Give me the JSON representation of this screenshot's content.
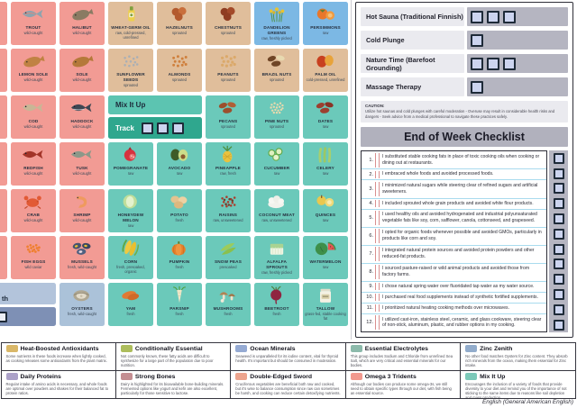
{
  "colors": {
    "omega3": "#F29B94",
    "cond": "#E0BE9B",
    "heat": "#7CB8E4",
    "mix": "#6BC9BA",
    "zinc": "#ABC2D9",
    "mix_panel_title_bg": "#5CC4B1",
    "mix_panel_track_bg": "#2FA78E",
    "zinc_panel_title_bg": "#B3C4DB",
    "zinc_panel_track_bg": "#7E90B5",
    "checkbox_fill": "#CCD4EF"
  },
  "food_grid": {
    "mix_panel": {
      "title": "Mix It Up",
      "track_label": "Track",
      "checkbox_count": 3
    },
    "zinc_panel": {
      "visible_title": "th",
      "checkbox_count": 1
    },
    "cells": [
      {
        "row": 1,
        "col": 1,
        "name": "TROUT",
        "sub": "wild-caught",
        "cat": "omega3",
        "icon": "trout-fish-icon"
      },
      {
        "row": 1,
        "col": 2,
        "name": "HALIBUT",
        "sub": "wild-caught",
        "cat": "omega3",
        "icon": "halibut-fish-icon"
      },
      {
        "row": 1,
        "col": 3,
        "name": "WHEAT-GERM OIL",
        "sub": "raw, cold-pressed, unrefined",
        "cat": "cond",
        "icon": "oil-bottle-icon"
      },
      {
        "row": 1,
        "col": 4,
        "name": "HAZELNUTS",
        "sub": "sprouted",
        "cat": "cond",
        "icon": "hazelnuts-icon"
      },
      {
        "row": 1,
        "col": 5,
        "name": "CHESTNUTS",
        "sub": "sprouted",
        "cat": "cond",
        "icon": "chestnuts-icon"
      },
      {
        "row": 1,
        "col": 6,
        "name": "DANDELION GREENS",
        "sub": "raw, freshly picked",
        "cat": "heat",
        "icon": "dandelion-greens-icon"
      },
      {
        "row": 1,
        "col": 7,
        "name": "PERSIMMONS",
        "sub": "raw",
        "cat": "heat",
        "icon": "persimmons-icon"
      },
      {
        "row": 2,
        "col": 1,
        "name": "LEMON SOLE",
        "sub": "wild-caught",
        "cat": "omega3",
        "icon": "lemon-sole-fish-icon"
      },
      {
        "row": 2,
        "col": 2,
        "name": "SOLE",
        "sub": "wild-caught",
        "cat": "omega3",
        "icon": "sole-fish-icon"
      },
      {
        "row": 2,
        "col": 3,
        "name": "SUNFLOWER SEEDS",
        "sub": "sprouted",
        "cat": "cond",
        "icon": "sunflower-seeds-icon"
      },
      {
        "row": 2,
        "col": 4,
        "name": "ALMONDS",
        "sub": "sprouted",
        "cat": "cond",
        "icon": "almonds-icon"
      },
      {
        "row": 2,
        "col": 5,
        "name": "PEANUTS",
        "sub": "sprouted",
        "cat": "cond",
        "icon": "peanuts-icon"
      },
      {
        "row": 2,
        "col": 6,
        "name": "BRAZIL NUTS",
        "sub": "sprouted",
        "cat": "cond",
        "icon": "brazil-nuts-icon"
      },
      {
        "row": 2,
        "col": 7,
        "name": "PALM OIL",
        "sub": "cold-pressed, unrefined",
        "cat": "cond",
        "icon": "palm-oil-icon"
      },
      {
        "row": 3,
        "col": 1,
        "name": "COD",
        "sub": "wild-caught",
        "cat": "omega3",
        "icon": "cod-fish-icon"
      },
      {
        "row": 3,
        "col": 2,
        "name": "HADDOCK",
        "sub": "wild-caught",
        "cat": "omega3",
        "icon": "haddock-fish-icon"
      },
      {
        "row": 3,
        "col": 5,
        "name": "PECANS",
        "sub": "sprouted",
        "cat": "mix",
        "icon": "pecans-icon"
      },
      {
        "row": 3,
        "col": 6,
        "name": "PINE NUTS",
        "sub": "sprouted",
        "cat": "mix",
        "icon": "pine-nuts-icon"
      },
      {
        "row": 3,
        "col": 7,
        "name": "DATES",
        "sub": "raw",
        "cat": "mix",
        "icon": "dates-icon"
      },
      {
        "row": 4,
        "col": 1,
        "name": "REDFISH",
        "sub": "wild-caught",
        "cat": "omega3",
        "icon": "redfish-icon"
      },
      {
        "row": 4,
        "col": 2,
        "name": "TUSK",
        "sub": "wild-caught",
        "cat": "omega3",
        "icon": "tusk-fish-icon"
      },
      {
        "row": 4,
        "col": 3,
        "name": "POMEGRANATE",
        "sub": "raw",
        "cat": "mix",
        "icon": "pomegranate-icon"
      },
      {
        "row": 4,
        "col": 4,
        "name": "AVOCADO",
        "sub": "raw",
        "cat": "mix",
        "icon": "avocado-icon"
      },
      {
        "row": 4,
        "col": 5,
        "name": "PINEAPPLE",
        "sub": "raw, fresh",
        "cat": "mix",
        "icon": "pineapple-icon"
      },
      {
        "row": 4,
        "col": 6,
        "name": "CUCUMBER",
        "sub": "raw",
        "cat": "mix",
        "icon": "cucumber-icon"
      },
      {
        "row": 4,
        "col": 7,
        "name": "CELERY",
        "sub": "raw",
        "cat": "mix",
        "icon": "celery-icon"
      },
      {
        "row": 5,
        "col": 1,
        "name": "CRAB",
        "sub": "wild-caught",
        "cat": "omega3",
        "icon": "crab-icon"
      },
      {
        "row": 5,
        "col": 2,
        "name": "SHRIMP",
        "sub": "wild-caught",
        "cat": "omega3",
        "icon": "shrimp-icon"
      },
      {
        "row": 5,
        "col": 3,
        "name": "HONEYDEW MELON",
        "sub": "raw",
        "cat": "mix",
        "icon": "honeydew-melon-icon"
      },
      {
        "row": 5,
        "col": 4,
        "name": "POTATO",
        "sub": "fresh",
        "cat": "mix",
        "icon": "potato-icon"
      },
      {
        "row": 5,
        "col": 5,
        "name": "RAISINS",
        "sub": "raw, unsweetened",
        "cat": "mix",
        "icon": "raisins-icon"
      },
      {
        "row": 5,
        "col": 6,
        "name": "COCONUT MEAT",
        "sub": "raw, unsweetened",
        "cat": "mix",
        "icon": "coconut-meat-icon"
      },
      {
        "row": 5,
        "col": 7,
        "name": "QUINCES",
        "sub": "raw",
        "cat": "mix",
        "icon": "quinces-icon"
      },
      {
        "row": 6,
        "col": 1,
        "name": "FISH EGGS",
        "sub": "wild caviar",
        "cat": "omega3",
        "icon": "fish-eggs-icon"
      },
      {
        "row": 6,
        "col": 2,
        "name": "MUSSELS",
        "sub": "fresh, wild-caught",
        "cat": "omega3",
        "icon": "mussels-icon"
      },
      {
        "row": 6,
        "col": 3,
        "name": "CORN",
        "sub": "fresh, presoaked, organic",
        "cat": "mix",
        "icon": "corn-icon"
      },
      {
        "row": 6,
        "col": 4,
        "name": "PUMPKIN",
        "sub": "fresh",
        "cat": "mix",
        "icon": "pumpkin-icon"
      },
      {
        "row": 6,
        "col": 5,
        "name": "SNOW PEAS",
        "sub": "presoaked",
        "cat": "mix",
        "icon": "snow-peas-icon"
      },
      {
        "row": 6,
        "col": 6,
        "name": "ALFALFA SPROUTS",
        "sub": "raw, freshly picked",
        "cat": "mix",
        "icon": "alfalfa-sprouts-icon"
      },
      {
        "row": 6,
        "col": 7,
        "name": "WATERMELON",
        "sub": "raw",
        "cat": "mix",
        "icon": "watermelon-icon"
      },
      {
        "row": 7,
        "col": 2,
        "name": "OYSTERS",
        "sub": "fresh, wild-caught",
        "cat": "zinc",
        "icon": "oysters-icon"
      },
      {
        "row": 7,
        "col": 3,
        "name": "YAM",
        "sub": "fresh",
        "cat": "mix",
        "icon": "yam-icon"
      },
      {
        "row": 7,
        "col": 4,
        "name": "PARSNIP",
        "sub": "fresh",
        "cat": "mix",
        "icon": "parsnip-icon"
      },
      {
        "row": 7,
        "col": 5,
        "name": "MUSHROOMS",
        "sub": "fresh",
        "cat": "mix",
        "icon": "mushrooms-icon"
      },
      {
        "row": 7,
        "col": 6,
        "name": "BEETROOT",
        "sub": "fresh",
        "cat": "mix",
        "icon": "beetroot-icon"
      },
      {
        "row": 7,
        "col": 7,
        "name": "TALLOW",
        "sub": "grass-fed, stable cooking fat",
        "cat": "mix",
        "icon": "tallow-jar-icon"
      }
    ]
  },
  "practice_tracker": {
    "rows": [
      {
        "label": "Hot Sauna (Traditional Finnish)",
        "checkbox_count": 3
      },
      {
        "label": "Cold Plunge",
        "checkbox_count": 1
      },
      {
        "label": "Nature Time (Barefoot Grounding)",
        "checkbox_count": 3
      },
      {
        "label": "Massage Therapy",
        "checkbox_count": 1
      }
    ],
    "caution_label": "CAUTION:",
    "caution_text": "Utilize hot saunas and cold plunges with careful moderation - Overuse may result in considerable health risks and dangers - Seek advice from a medical professional to navigate these practices safely."
  },
  "checklist": {
    "title": "End of Week Checklist",
    "items": [
      {
        "num": "1.",
        "text": "I substituted stable cooking fats in place of toxic cooking oils when cooking or dining out at restaurants."
      },
      {
        "num": "2.",
        "text": "I embraced whole foods and avoided processed foods."
      },
      {
        "num": "3.",
        "text": "I minimized natural sugars while steering clear of refined sugars and artificial sweeteners."
      },
      {
        "num": "4.",
        "text": "I included sprouted whole grain products and avoided white flour products."
      },
      {
        "num": "5.",
        "text": "I used healthy oils and avoided hydrogenated and industrial polyunsaturated vegetable fats like soy, corn, safflower, canola, cottonseed, and grapeseed."
      },
      {
        "num": "6.",
        "text": "I opted for organic foods whenever possible and avoided GMOs, particularly in products like corn and soy."
      },
      {
        "num": "7.",
        "text": "I integrated natural protein sources and avoided protein powders and other reduced-fat products."
      },
      {
        "num": "8.",
        "text": "I sourced pasture-raised or wild animal products and avoided those from factory farms."
      },
      {
        "num": "9.",
        "text": "I chose natural spring water over fluoridated tap water as my water source."
      },
      {
        "num": "10.",
        "text": "I purchased real food supplements instead of synthetic fortified supplements."
      },
      {
        "num": "11.",
        "text": "I prioritized natural heating cooking methods over microwaves."
      },
      {
        "num": "12.",
        "text": "I utilized cast-iron, stainless steel, ceramic, and glass cookware, steering clear of non-stick, aluminum, plastic, and rubber options in my cooking."
      }
    ]
  },
  "legend": [
    {
      "title": "Heat-Boosted Antioxidants",
      "color": "#D9B768",
      "description": "Some nutrients in these foods increase when lightly cooked, as cooking releases some antioxidants from the plant matrix."
    },
    {
      "title": "Conditionally Essential",
      "color": "#ADBD5C",
      "description": "Not commonly known, these fatty acids are difficult to synthesize for a large part of the population due to poor nutrition."
    },
    {
      "title": "Ocean Minerals",
      "color": "#95AAD3",
      "description": "Seaweed is unparalleled for its iodine content, vital for thyroid health. It's important but should be consumed in moderation."
    },
    {
      "title": "Essential Electrolytes",
      "color": "#8CBAAB",
      "description": "This group includes Sodium and Chloride from unrefined Sea Salt, which are very critical and essential minerals for our bodies."
    },
    {
      "title": "Zinc Zenith",
      "color": "#92ACCC",
      "description": "No other food matches Oysters for Zinc content. They absorb rich minerals from the ocean, making them essential for Zinc intake."
    },
    {
      "title": "Daily Proteins",
      "color": "#ABA1C8",
      "description": "Regular intake of amino acids is necessary, and whole foods are optimal over powders and shakes for their balanced fat to protein ratios."
    },
    {
      "title": "Strong Bones",
      "color": "#C48E92",
      "description": "Dairy is highlighted for its bioavailable bone-building minerals. Fermented options like yogurt and kefir are also excellent, particularly for those sensitive to lactose."
    },
    {
      "title": "Double-Edged Sword",
      "color": "#EDA48E",
      "description": "Cruciferous vegetables are beneficial both raw and cooked, but it's wise to balance consumption since raw can sometimes be harsh, and cooking can reduce certain detoxifying nutrients."
    },
    {
      "title": "Omega 3 Tridents",
      "color": "#F2998F",
      "description": "Although our bodies can produce some omega-3s, we still need to obtain specific types through our diet, with fish being an essential source."
    },
    {
      "title": "Mix It Up",
      "color": "#7CC9B9",
      "description": "Encourages the inclusion of a variety of foods that provide diversity to your diet and remind you of the importance of not sticking to the same items due to reasons like soil depletion and mass production."
    }
  ],
  "footer": {
    "language_note": "English (General American English)"
  }
}
